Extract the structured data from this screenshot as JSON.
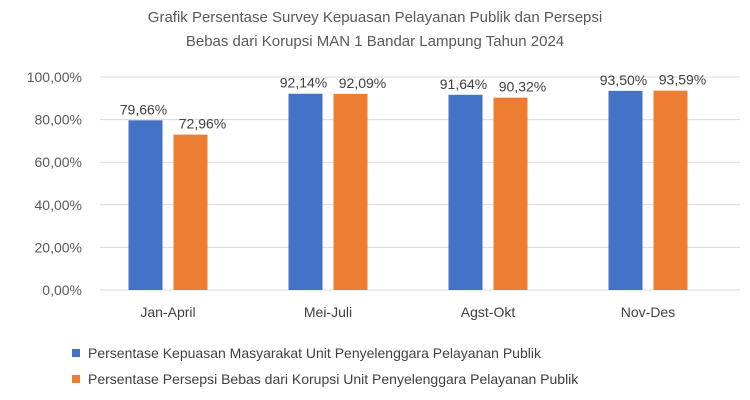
{
  "chart_data": {
    "type": "bar",
    "title_lines": [
      "Grafik Persentase Survey Kepuasan Pelayanan Publik dan Persepsi",
      "Bebas dari Korupsi MAN 1 Bandar Lampung Tahun 2024"
    ],
    "categories": [
      "Jan-April",
      "Mei-Juli",
      "Agst-Okt",
      "Nov-Des"
    ],
    "series": [
      {
        "name": "Persentase Kepuasan Masyarakat Unit Penyelenggara Pelayanan Publik",
        "color": "#4472C4",
        "values": [
          79.66,
          92.14,
          91.64,
          93.5
        ],
        "labels": [
          "79,66%",
          "92,14%",
          "91,64%",
          "93,50%"
        ]
      },
      {
        "name": "Persentase Persepsi Bebas  dari Korupsi Unit Penyelenggara Pelayanan Publik",
        "color": "#ED7D31",
        "values": [
          72.96,
          92.09,
          90.32,
          93.59
        ],
        "labels": [
          "72,96%",
          "92,09%",
          "90,32%",
          "93,59%"
        ]
      }
    ],
    "ylim": [
      0,
      100
    ],
    "yticks": [
      0,
      20,
      40,
      60,
      80,
      100
    ],
    "ytick_labels": [
      "0,00%",
      "20,00%",
      "40,00%",
      "60,00%",
      "80,00%",
      "100,00%"
    ],
    "grid": true,
    "gridline_color": "#d9d9d9",
    "legend_position": "bottom"
  }
}
